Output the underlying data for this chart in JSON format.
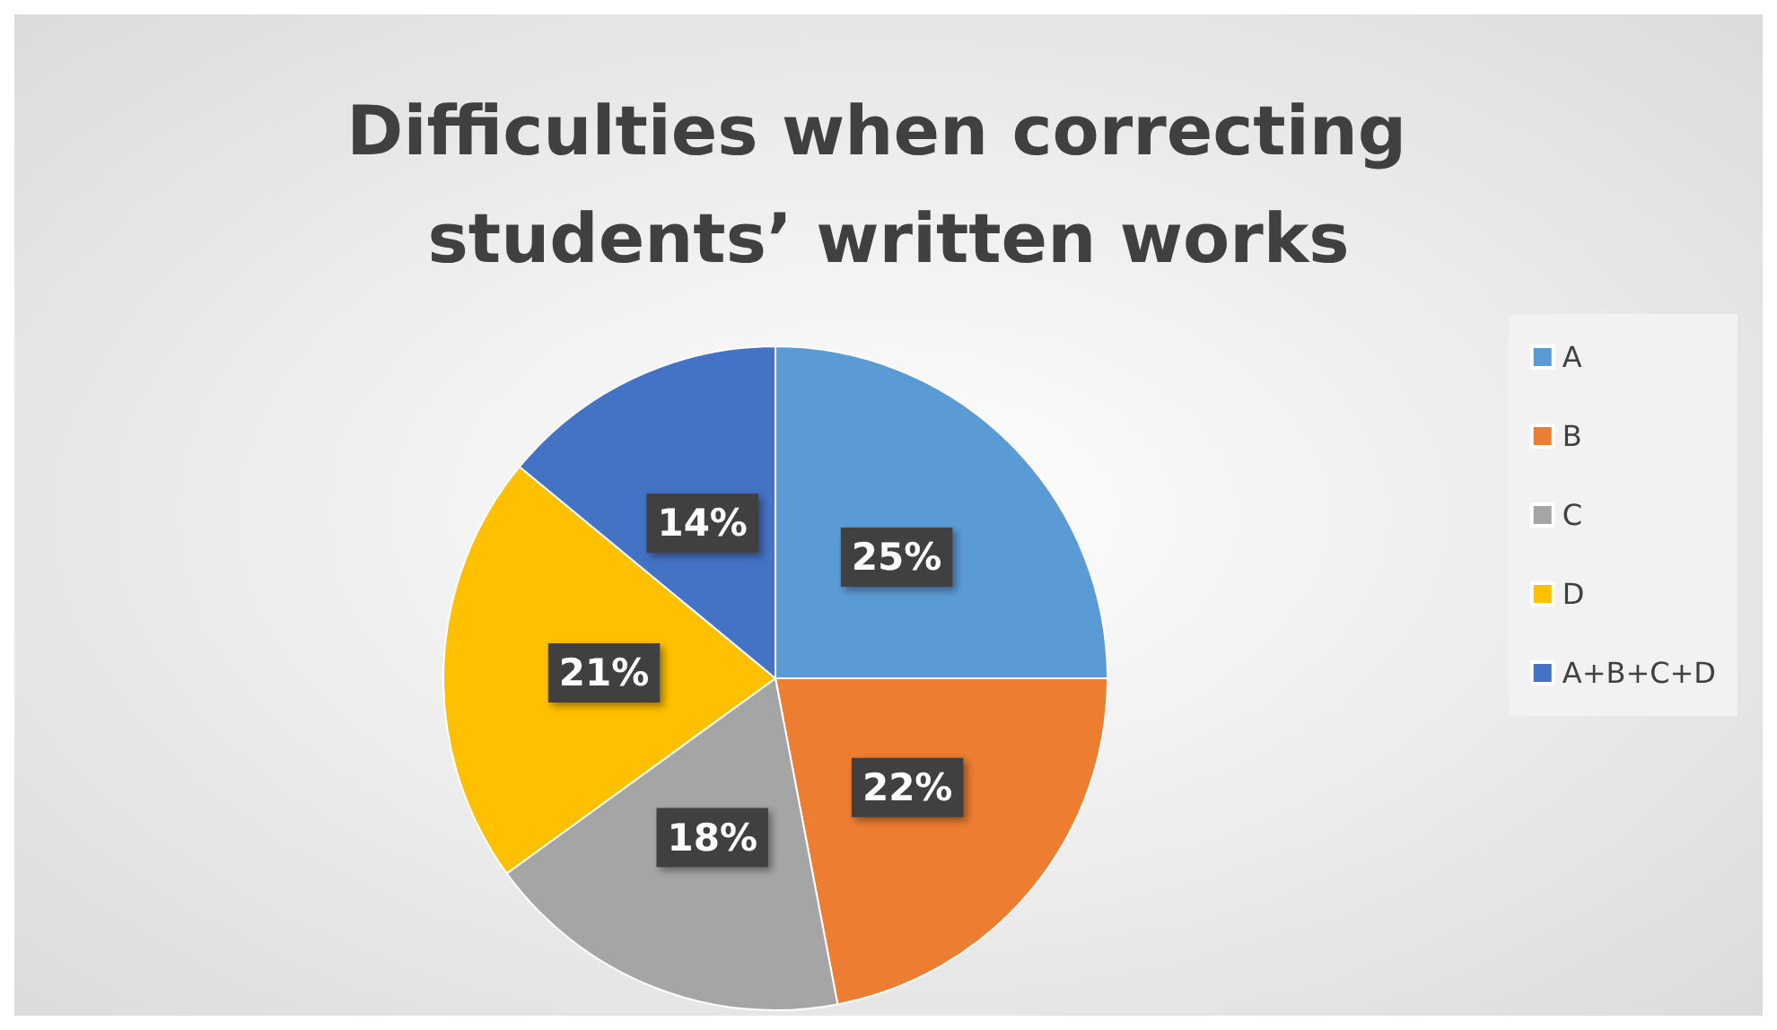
{
  "chart_data": {
    "type": "pie",
    "title": "Difficulties when correcting students’ written works",
    "categories": [
      "A",
      "B",
      "C",
      "D",
      "A+B+C+D"
    ],
    "values": [
      25,
      22,
      18,
      21,
      14
    ],
    "colors": [
      "#5b9bd5",
      "#ed7d31",
      "#a5a5a5",
      "#ffc000",
      "#4472c4"
    ],
    "value_labels": [
      "25%",
      "22%",
      "18%",
      "21%",
      "14%"
    ],
    "legend": "right"
  }
}
